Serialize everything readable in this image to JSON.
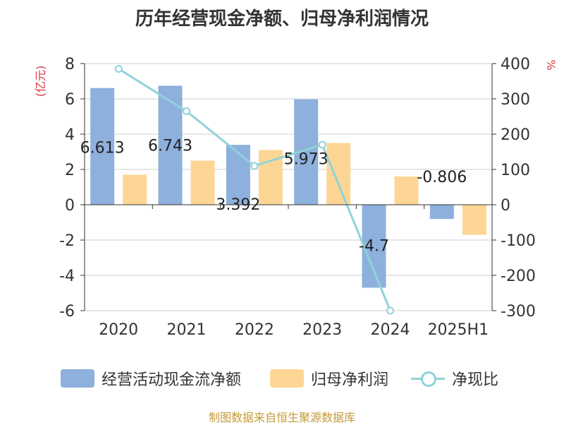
{
  "title": "历年经营现金净额、归母净利润情况",
  "source": "制图数据来自恒生聚源数据库",
  "colors": {
    "cash": "#8eb0dc",
    "profit": "#fdd695",
    "ratio": "#8fd3d8",
    "axis_unit": "#d9363e"
  },
  "chart_data": {
    "type": "bar",
    "categories": [
      "2020",
      "2021",
      "2022",
      "2023",
      "2024",
      "2025H1"
    ],
    "ylabel_left": "(亿元)",
    "ylabel_right": "%",
    "ylim_left": [
      -6,
      8
    ],
    "ylim_right": [
      -300,
      400
    ],
    "yticks_left": [
      "8",
      "6",
      "4",
      "2",
      "0",
      "-2",
      "-4",
      "-6"
    ],
    "yticks_right": [
      "400",
      "300",
      "200",
      "100",
      "0",
      "-100",
      "-200",
      "-300"
    ],
    "grid": true,
    "legend_position": "bottom",
    "series": [
      {
        "name": "经营活动现金流净额",
        "kind": "bar",
        "axis": "left",
        "values": [
          6.613,
          6.743,
          3.392,
          5.973,
          -4.7,
          -0.806
        ],
        "labels": [
          "6.613",
          "6.743",
          "3.392",
          "5.973",
          "-4.7",
          "-0.806"
        ]
      },
      {
        "name": "归母净利润",
        "kind": "bar",
        "axis": "left",
        "values": [
          1.7,
          2.5,
          3.1,
          3.5,
          1.6,
          -1.7
        ]
      },
      {
        "name": "净现比",
        "kind": "line",
        "axis": "right",
        "values": [
          385,
          265,
          110,
          170,
          -300,
          null
        ]
      }
    ]
  }
}
